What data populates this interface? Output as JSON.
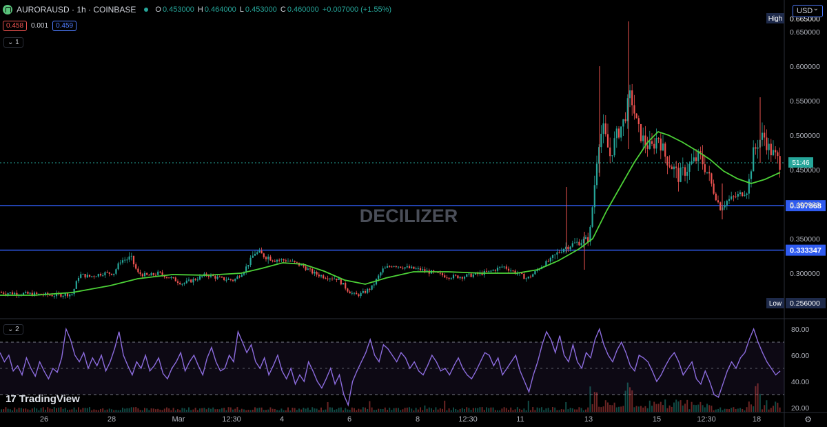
{
  "header": {
    "symbol": "AURORAUSD · 1h · COINBASE",
    "o_label": "O",
    "o_value": "0.453000",
    "h_label": "H",
    "h_value": "0.464000",
    "l_label": "L",
    "l_value": "0.453000",
    "c_label": "C",
    "c_value": "0.460000",
    "change": "+0.007000 (+1.55%)"
  },
  "price_boxes": {
    "bid": "0.458",
    "spread": "0.001",
    "ask": "0.459"
  },
  "pane_toggles": {
    "main": "1",
    "rsi": "2"
  },
  "currency": "USD",
  "watermark": "DECILIZER",
  "brand": "TradingView",
  "colors": {
    "up": "#26a69a",
    "down": "#ef5350",
    "ma": "#4cd137",
    "rsi": "#8c6cde",
    "level": "#2f5bf0",
    "bg": "#000000",
    "axis_text": "#b2b5be"
  },
  "chart_data": [
    {
      "type": "candlestick",
      "x_ticks": [
        "26",
        "28",
        "Mar",
        "12:30",
        "4",
        "6",
        "8",
        "12:30",
        "11",
        "13",
        "15",
        "12:30",
        "18"
      ],
      "ylim": [
        0.245,
        0.665
      ],
      "y_ticks": [
        "0.650000",
        "0.600000",
        "0.550000",
        "0.500000",
        "0.450000",
        "0.400000",
        "0.350000",
        "0.300000"
      ],
      "high_label": "High",
      "high_value": "0.665000",
      "low_label": "Low",
      "low_value": "0.256000",
      "horizontal_levels": [
        {
          "value": 0.397868,
          "label": "0.397868"
        },
        {
          "value": 0.333347,
          "label": "0.333347"
        }
      ],
      "last_price": 0.46,
      "countdown": "51:46",
      "close_path": [
        [
          0,
          0.272
        ],
        [
          40,
          0.27
        ],
        [
          80,
          0.268
        ],
        [
          105,
          0.27
        ],
        [
          115,
          0.298
        ],
        [
          130,
          0.295
        ],
        [
          150,
          0.3
        ],
        [
          165,
          0.3
        ],
        [
          175,
          0.318
        ],
        [
          190,
          0.322
        ],
        [
          200,
          0.3
        ],
        [
          215,
          0.296
        ],
        [
          230,
          0.3
        ],
        [
          250,
          0.292
        ],
        [
          265,
          0.285
        ],
        [
          280,
          0.29
        ],
        [
          300,
          0.298
        ],
        [
          320,
          0.292
        ],
        [
          340,
          0.29
        ],
        [
          355,
          0.305
        ],
        [
          370,
          0.33
        ],
        [
          385,
          0.325
        ],
        [
          400,
          0.32
        ],
        [
          420,
          0.318
        ],
        [
          440,
          0.31
        ],
        [
          455,
          0.3
        ],
        [
          470,
          0.295
        ],
        [
          490,
          0.292
        ],
        [
          505,
          0.275
        ],
        [
          515,
          0.268
        ],
        [
          525,
          0.27
        ],
        [
          540,
          0.28
        ],
        [
          555,
          0.305
        ],
        [
          570,
          0.312
        ],
        [
          590,
          0.308
        ],
        [
          610,
          0.305
        ],
        [
          630,
          0.3
        ],
        [
          650,
          0.295
        ],
        [
          670,
          0.295
        ],
        [
          690,
          0.298
        ],
        [
          710,
          0.302
        ],
        [
          730,
          0.31
        ],
        [
          750,
          0.3
        ],
        [
          765,
          0.292
        ],
        [
          775,
          0.3
        ],
        [
          785,
          0.31
        ],
        [
          800,
          0.32
        ],
        [
          815,
          0.335
        ],
        [
          825,
          0.34
        ],
        [
          840,
          0.345
        ],
        [
          855,
          0.35
        ],
        [
          862,
          0.42
        ],
        [
          868,
          0.49
        ],
        [
          875,
          0.51
        ],
        [
          885,
          0.47
        ],
        [
          895,
          0.5
        ],
        [
          905,
          0.52
        ],
        [
          915,
          0.56
        ],
        [
          925,
          0.51
        ],
        [
          935,
          0.49
        ],
        [
          945,
          0.48
        ],
        [
          955,
          0.5
        ],
        [
          965,
          0.47
        ],
        [
          975,
          0.455
        ],
        [
          985,
          0.44
        ],
        [
          995,
          0.45
        ],
        [
          1005,
          0.46
        ],
        [
          1015,
          0.47
        ],
        [
          1025,
          0.45
        ],
        [
          1035,
          0.42
        ],
        [
          1045,
          0.395
        ],
        [
          1055,
          0.405
        ],
        [
          1065,
          0.41
        ],
        [
          1075,
          0.415
        ],
        [
          1085,
          0.42
        ],
        [
          1092,
          0.47
        ],
        [
          1100,
          0.49
        ],
        [
          1108,
          0.5
        ],
        [
          1116,
          0.48
        ],
        [
          1124,
          0.47
        ],
        [
          1132,
          0.46
        ]
      ],
      "ma_path": [
        [
          0,
          0.268
        ],
        [
          50,
          0.268
        ],
        [
          105,
          0.272
        ],
        [
          160,
          0.282
        ],
        [
          200,
          0.292
        ],
        [
          250,
          0.298
        ],
        [
          300,
          0.297
        ],
        [
          350,
          0.3
        ],
        [
          380,
          0.307
        ],
        [
          410,
          0.315
        ],
        [
          440,
          0.313
        ],
        [
          470,
          0.303
        ],
        [
          500,
          0.29
        ],
        [
          530,
          0.284
        ],
        [
          560,
          0.293
        ],
        [
          600,
          0.302
        ],
        [
          650,
          0.302
        ],
        [
          700,
          0.3
        ],
        [
          750,
          0.3
        ],
        [
          780,
          0.305
        ],
        [
          810,
          0.318
        ],
        [
          840,
          0.335
        ],
        [
          860,
          0.35
        ],
        [
          880,
          0.39
        ],
        [
          900,
          0.425
        ],
        [
          920,
          0.46
        ],
        [
          940,
          0.49
        ],
        [
          955,
          0.505
        ],
        [
          970,
          0.5
        ],
        [
          990,
          0.49
        ],
        [
          1010,
          0.478
        ],
        [
          1030,
          0.465
        ],
        [
          1050,
          0.448
        ],
        [
          1070,
          0.437
        ],
        [
          1090,
          0.43
        ],
        [
          1110,
          0.436
        ],
        [
          1132,
          0.446
        ]
      ],
      "spikes": [
        {
          "x": 822,
          "high": 0.425,
          "low": 0.33
        },
        {
          "x": 870,
          "high": 0.6,
          "low": 0.44
        },
        {
          "x": 912,
          "high": 0.665,
          "low": 0.48
        },
        {
          "x": 1103,
          "high": 0.555,
          "low": 0.46
        },
        {
          "x": 1048,
          "high": 0.43,
          "low": 0.378
        },
        {
          "x": 848,
          "high": 0.36,
          "low": 0.305
        }
      ]
    },
    {
      "type": "line",
      "name": "",
      "ylim": [
        15,
        85
      ],
      "y_ticks": [
        "80.00",
        "60.00",
        "40.00",
        "20.00"
      ],
      "band": [
        30,
        70
      ],
      "values": [
        62,
        55,
        60,
        48,
        52,
        45,
        58,
        50,
        44,
        55,
        48,
        42,
        50,
        47,
        58,
        80,
        72,
        60,
        55,
        62,
        50,
        58,
        52,
        60,
        48,
        55,
        65,
        78,
        60,
        52,
        45,
        55,
        50,
        60,
        48,
        52,
        58,
        46,
        42,
        50,
        55,
        62,
        48,
        55,
        60,
        52,
        45,
        58,
        66,
        55,
        48,
        50,
        60,
        55,
        78,
        70,
        62,
        68,
        55,
        50,
        58,
        45,
        52,
        60,
        48,
        42,
        50,
        38,
        45,
        40,
        55,
        48,
        40,
        35,
        42,
        50,
        38,
        45,
        30,
        22,
        40,
        48,
        55,
        62,
        72,
        60,
        55,
        68,
        65,
        60,
        55,
        62,
        58,
        50,
        55,
        48,
        45,
        52,
        60,
        55,
        48,
        50,
        45,
        52,
        58,
        50,
        45,
        42,
        48,
        55,
        62,
        60,
        52,
        58,
        45,
        50,
        55,
        60,
        48,
        40,
        32,
        45,
        55,
        68,
        78,
        72,
        62,
        75,
        60,
        55,
        68,
        55,
        50,
        62,
        58,
        72,
        80,
        68,
        60,
        55,
        64,
        70,
        62,
        52,
        48,
        60,
        58,
        55,
        48,
        40,
        45,
        52,
        58,
        62,
        55,
        45,
        50,
        55,
        42,
        38,
        48,
        40,
        30,
        28,
        38,
        48,
        55,
        50,
        58,
        62,
        72,
        80,
        70,
        62,
        55,
        50,
        45,
        48
      ]
    }
  ]
}
